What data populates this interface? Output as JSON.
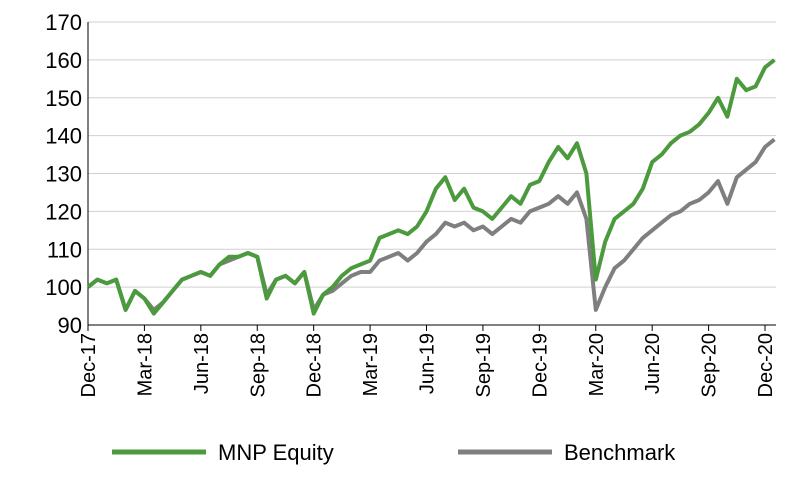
{
  "chart_data": {
    "type": "line",
    "categories": [
      "Dec-17",
      null,
      null,
      null,
      null,
      null,
      "Mar-18",
      null,
      null,
      null,
      null,
      null,
      "Jun-18",
      null,
      null,
      null,
      null,
      null,
      "Sep-18",
      null,
      null,
      null,
      null,
      null,
      "Dec-18",
      null,
      null,
      null,
      null,
      null,
      "Mar-19",
      null,
      null,
      null,
      null,
      null,
      "Jun-19",
      null,
      null,
      null,
      null,
      null,
      "Sep-19",
      null,
      null,
      null,
      null,
      null,
      "Dec-19",
      null,
      null,
      null,
      null,
      null,
      "Mar-20",
      null,
      null,
      null,
      null,
      null,
      "Jun-20",
      null,
      null,
      null,
      null,
      null,
      "Sep-20",
      null,
      null,
      null,
      null,
      null,
      "Dec-20",
      null
    ],
    "series": [
      {
        "name": "MNP Equity",
        "color": "#4b9a3d",
        "values": [
          100,
          102,
          101,
          102,
          94,
          99,
          97,
          93,
          96,
          99,
          102,
          103,
          104,
          103,
          106,
          108,
          108,
          109,
          108,
          97,
          102,
          103,
          101,
          104,
          93,
          98,
          100,
          103,
          105,
          106,
          107,
          113,
          114,
          115,
          114,
          116,
          120,
          126,
          129,
          123,
          126,
          121,
          120,
          118,
          121,
          124,
          122,
          127,
          128,
          133,
          137,
          134,
          138,
          130,
          102,
          112,
          118,
          120,
          122,
          126,
          133,
          135,
          138,
          140,
          141,
          143,
          146,
          150,
          145,
          155,
          152,
          153,
          158,
          160
        ]
      },
      {
        "name": "Benchmark",
        "color": "#7f7f7f",
        "values": [
          100,
          102,
          101,
          102,
          94,
          99,
          97,
          94,
          96,
          99,
          102,
          103,
          104,
          103,
          106,
          107,
          108,
          109,
          108,
          98,
          102,
          103,
          101,
          104,
          94,
          98,
          99,
          101,
          103,
          104,
          104,
          107,
          108,
          109,
          107,
          109,
          112,
          114,
          117,
          116,
          117,
          115,
          116,
          114,
          116,
          118,
          117,
          120,
          121,
          122,
          124,
          122,
          125,
          118,
          94,
          100,
          105,
          107,
          110,
          113,
          115,
          117,
          119,
          120,
          122,
          123,
          125,
          128,
          122,
          129,
          131,
          133,
          137,
          139
        ]
      }
    ],
    "ylim": [
      90,
      170
    ],
    "yticks": [
      90,
      100,
      110,
      120,
      130,
      140,
      150,
      160,
      170
    ],
    "grid": true
  }
}
